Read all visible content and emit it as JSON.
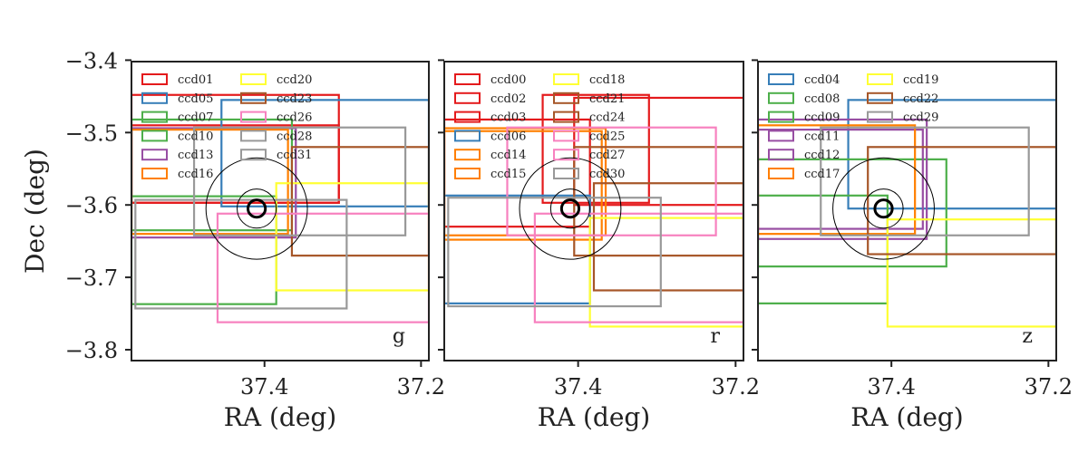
{
  "chart_data": {
    "type": "rectangles",
    "colors": {
      "red": "#e41a1c",
      "blue": "#377eb8",
      "green": "#4daf4a",
      "purple": "#984ea3",
      "orange": "#ff7f00",
      "yellow": "#ffff33",
      "brown": "#a65628",
      "pink": "#f781bf",
      "gray": "#999999"
    },
    "xlabel": "RA (deg)",
    "ylabel": "Dec (deg)",
    "xlim": [
      37.57,
      37.19
    ],
    "ylim": [
      -3.815,
      -3.402
    ],
    "xticks": [
      37.4,
      37.2
    ],
    "xtick_labels": [
      "37.4",
      "37.2"
    ],
    "yticks": [
      -3.4,
      -3.5,
      -3.6,
      -3.7,
      -3.8
    ],
    "ytick_labels": [
      "−3.4",
      "−3.5",
      "−3.6",
      "−3.7",
      "−3.8"
    ],
    "target": {
      "ra": 37.41,
      "dec": -3.605,
      "radii": [
        0.012,
        0.027,
        0.07
      ]
    },
    "panels": [
      {
        "band": "g",
        "legend": [
          "ccd01",
          "ccd05",
          "ccd07",
          "ccd10",
          "ccd13",
          "ccd16",
          "ccd20",
          "ccd23",
          "ccd26",
          "ccd28",
          "ccd31"
        ],
        "legend_colors": [
          "red",
          "blue",
          "green",
          "green",
          "purple",
          "orange",
          "yellow",
          "brown",
          "pink",
          "gray",
          "gray"
        ],
        "rects": [
          {
            "ccd": "ccd01",
            "color": "red",
            "ra": [
              37.57,
              37.305
            ],
            "dec": [
              -3.597,
              -3.448
            ]
          },
          {
            "ccd": "ccd01",
            "color": "red",
            "ra": [
              37.57,
              37.305
            ],
            "dec": [
              -3.597,
              -3.49
            ]
          },
          {
            "ccd": "ccd05",
            "color": "blue",
            "ra": [
              37.455,
              37.19
            ],
            "dec": [
              -3.602,
              -3.455
            ]
          },
          {
            "ccd": "ccd07",
            "color": "green",
            "ra": [
              37.57,
              37.365
            ],
            "dec": [
              -3.635,
              -3.482
            ]
          },
          {
            "ccd": "ccd10",
            "color": "green",
            "ra": [
              37.57,
              37.385
            ],
            "dec": [
              -3.737,
              -3.588
            ]
          },
          {
            "ccd": "ccd13",
            "color": "purple",
            "ra": [
              37.57,
              37.36
            ],
            "dec": [
              -3.645,
              -3.494
            ]
          },
          {
            "ccd": "ccd16",
            "color": "orange",
            "ra": [
              37.57,
              37.37
            ],
            "dec": [
              -3.64,
              -3.496
            ]
          },
          {
            "ccd": "ccd20",
            "color": "yellow",
            "ra": [
              37.385,
              37.19
            ],
            "dec": [
              -3.718,
              -3.57
            ]
          },
          {
            "ccd": "ccd23",
            "color": "brown",
            "ra": [
              37.365,
              37.19
            ],
            "dec": [
              -3.67,
              -3.52
            ]
          },
          {
            "ccd": "ccd26",
            "color": "pink",
            "ra": [
              37.46,
              37.19
            ],
            "dec": [
              -3.762,
              -3.612
            ]
          },
          {
            "ccd": "ccd28",
            "color": "gray",
            "ra": [
              37.49,
              37.22
            ],
            "dec": [
              -3.642,
              -3.493
            ]
          },
          {
            "ccd": "ccd31",
            "color": "gray",
            "ra": [
              37.565,
              37.295
            ],
            "dec": [
              -3.743,
              -3.593
            ]
          }
        ]
      },
      {
        "band": "r",
        "legend": [
          "ccd00",
          "ccd02",
          "ccd03",
          "ccd06",
          "ccd14",
          "ccd15",
          "ccd18",
          "ccd21",
          "ccd24",
          "ccd25",
          "ccd27",
          "ccd30"
        ],
        "legend_colors": [
          "red",
          "red",
          "red",
          "blue",
          "orange",
          "orange",
          "yellow",
          "brown",
          "brown",
          "pink",
          "pink",
          "gray"
        ],
        "rects": [
          {
            "ccd": "ccd00",
            "color": "red",
            "ra": [
              37.405,
              37.19
            ],
            "dec": [
              -3.6,
              -3.452
            ]
          },
          {
            "ccd": "ccd02",
            "color": "red",
            "ra": [
              37.57,
              37.385
            ],
            "dec": [
              -3.63,
              -3.482
            ]
          },
          {
            "ccd": "ccd03",
            "color": "red",
            "ra": [
              37.445,
              37.31
            ],
            "dec": [
              -3.597,
              -3.448
            ]
          },
          {
            "ccd": "ccd06",
            "color": "blue",
            "ra": [
              37.57,
              37.385
            ],
            "dec": [
              -3.736,
              -3.587
            ]
          },
          {
            "ccd": "ccd14",
            "color": "orange",
            "ra": [
              37.57,
              37.365
            ],
            "dec": [
              -3.642,
              -3.494
            ]
          },
          {
            "ccd": "ccd15",
            "color": "orange",
            "ra": [
              37.57,
              37.37
            ],
            "dec": [
              -3.648,
              -3.498
            ]
          },
          {
            "ccd": "ccd18",
            "color": "yellow",
            "ra": [
              37.385,
              37.19
            ],
            "dec": [
              -3.768,
              -3.618
            ]
          },
          {
            "ccd": "ccd21",
            "color": "brown",
            "ra": [
              37.405,
              37.19
            ],
            "dec": [
              -3.67,
              -3.52
            ]
          },
          {
            "ccd": "ccd24",
            "color": "brown",
            "ra": [
              37.38,
              37.19
            ],
            "dec": [
              -3.718,
              -3.57
            ]
          },
          {
            "ccd": "ccd25",
            "color": "pink",
            "ra": [
              37.49,
              37.225
            ],
            "dec": [
              -3.642,
              -3.493
            ]
          },
          {
            "ccd": "ccd27",
            "color": "pink",
            "ra": [
              37.455,
              37.19
            ],
            "dec": [
              -3.762,
              -3.612
            ]
          },
          {
            "ccd": "ccd30",
            "color": "gray",
            "ra": [
              37.565,
              37.295
            ],
            "dec": [
              -3.74,
              -3.59
            ]
          }
        ]
      },
      {
        "band": "z",
        "legend": [
          "ccd04",
          "ccd08",
          "ccd09",
          "ccd11",
          "ccd12",
          "ccd17",
          "ccd19",
          "ccd22",
          "ccd29"
        ],
        "legend_colors": [
          "blue",
          "green",
          "green",
          "purple",
          "purple",
          "orange",
          "yellow",
          "brown",
          "gray"
        ],
        "rects": [
          {
            "ccd": "ccd04",
            "color": "blue",
            "ra": [
              37.455,
              37.19
            ],
            "dec": [
              -3.605,
              -3.455
            ]
          },
          {
            "ccd": "ccd08",
            "color": "green",
            "ra": [
              37.57,
              37.405
            ],
            "dec": [
              -3.736,
              -3.587
            ]
          },
          {
            "ccd": "ccd09",
            "color": "green",
            "ra": [
              37.57,
              37.33
            ],
            "dec": [
              -3.685,
              -3.537
            ]
          },
          {
            "ccd": "ccd11",
            "color": "purple",
            "ra": [
              37.57,
              37.355
            ],
            "dec": [
              -3.647,
              -3.482
            ]
          },
          {
            "ccd": "ccd12",
            "color": "purple",
            "ra": [
              37.57,
              37.36
            ],
            "dec": [
              -3.633,
              -3.496
            ]
          },
          {
            "ccd": "ccd17",
            "color": "orange",
            "ra": [
              37.57,
              37.37
            ],
            "dec": [
              -3.64,
              -3.49
            ]
          },
          {
            "ccd": "ccd19",
            "color": "yellow",
            "ra": [
              37.405,
              37.19
            ],
            "dec": [
              -3.768,
              -3.62
            ]
          },
          {
            "ccd": "ccd22",
            "color": "brown",
            "ra": [
              37.43,
              37.19
            ],
            "dec": [
              -3.668,
              -3.52
            ]
          },
          {
            "ccd": "ccd29",
            "color": "gray",
            "ra": [
              37.49,
              37.225
            ],
            "dec": [
              -3.642,
              -3.493
            ]
          }
        ]
      }
    ]
  }
}
